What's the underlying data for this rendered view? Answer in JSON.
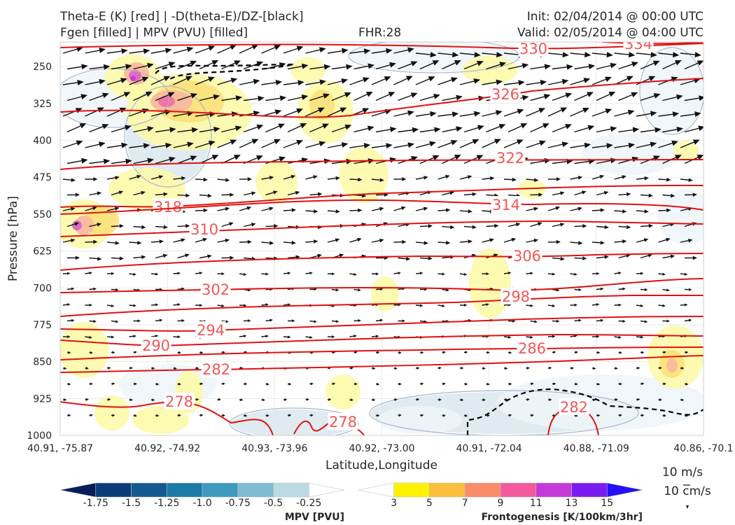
{
  "header": {
    "title_line1": "Theta-E (K) [red] | -D(theta-E)/DZ-[black]",
    "title_line2": "Fgen [filled] | MPV (PVU) [filled]",
    "fhr": "FHR:28",
    "init": "Init: 02/04/2014 @ 00:00 UTC",
    "valid": "Valid: 02/05/2014 @ 04:00 UTC"
  },
  "chart_data": {
    "type": "cross-section",
    "xlabel": "Latitude,Longitude",
    "ylabel": "Pressure [hPa]",
    "x_ticks": [
      "40.91, -75.87",
      "40.92, -74.92",
      "40.93, -73.96",
      "40.92, -73.00",
      "40.91, -72.04",
      "40.88, -71.09",
      "40.86, -70.1"
    ],
    "y_ticks": [
      250,
      325,
      400,
      475,
      550,
      625,
      700,
      775,
      850,
      925,
      1000
    ],
    "ylim": [
      1000,
      200
    ],
    "theta_e_contours": [
      {
        "value": 330,
        "label": "330"
      },
      {
        "value": 334,
        "label": "334"
      },
      {
        "value": 326,
        "label": "326"
      },
      {
        "value": 322,
        "label": "322"
      },
      {
        "value": 318,
        "label": "318"
      },
      {
        "value": 314,
        "label": "314"
      },
      {
        "value": 310,
        "label": "310"
      },
      {
        "value": 306,
        "label": "306"
      },
      {
        "value": 302,
        "label": "302"
      },
      {
        "value": 298,
        "label": "298"
      },
      {
        "value": 294,
        "label": "294"
      },
      {
        "value": 290,
        "label": "290"
      },
      {
        "value": 286,
        "label": "286"
      },
      {
        "value": 282,
        "label": "282"
      },
      {
        "value": 282,
        "label": "282"
      },
      {
        "value": 278,
        "label": "278"
      },
      {
        "value": 278,
        "label": "278"
      }
    ],
    "mpv_colorbar": {
      "label": "MPV [PVU]",
      "ticks": [
        "-1.75",
        "-1.5",
        "-1.25",
        "-1.0",
        "-0.75",
        "-0.5",
        "-0.25"
      ],
      "colors": [
        "#081d58",
        "#0b3c7a",
        "#135a91",
        "#1b7aa6",
        "#3e9bbf",
        "#7fbcd2",
        "#bcdae4",
        "#ffffff"
      ]
    },
    "fgen_colorbar": {
      "label": "Frontogenesis [K/100km/3hr]",
      "ticks": [
        "3",
        "5",
        "7",
        "9",
        "11",
        "13",
        "15"
      ],
      "colors": [
        "#ffffff",
        "#fff200",
        "#fcbf3c",
        "#fb8c6a",
        "#f4599e",
        "#c43ad9",
        "#7a1bf2",
        "#2410f5"
      ]
    },
    "wind_reference": {
      "horizontal": "10 m/s",
      "vertical": "10 cm/s"
    }
  }
}
